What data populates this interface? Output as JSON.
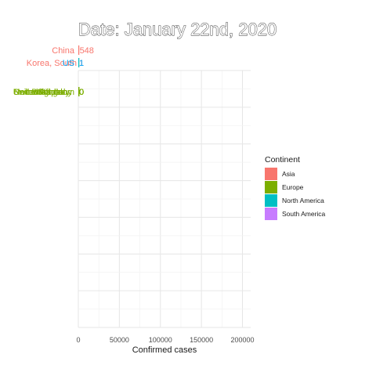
{
  "chart_data": {
    "type": "bar",
    "orientation": "horizontal",
    "title": "Date: January 22nd, 2020",
    "xlabel": "Confirmed cases",
    "ylabel": "",
    "xlim": [
      0,
      210000
    ],
    "x_ticks": [
      0,
      50000,
      100000,
      150000,
      200000
    ],
    "x_tick_labels": [
      "0",
      "50000",
      "100000",
      "150000",
      "200000"
    ],
    "grid": true,
    "legend": {
      "title": "Continent",
      "position": "right",
      "entries": [
        {
          "label": "Asia",
          "color": "#F8766D"
        },
        {
          "label": "Europe",
          "color": "#7CAE00"
        },
        {
          "label": "North America",
          "color": "#00BFC4"
        },
        {
          "label": "South America",
          "color": "#C77CFF"
        }
      ]
    },
    "bars": [
      {
        "country": "China",
        "value": 548,
        "value_label": "548",
        "continent": "Asia",
        "color": "#F8766D",
        "label_color": "#F8766D",
        "rank": 1
      },
      {
        "country": "Korea, South",
        "value": 1,
        "value_label": "1",
        "continent": "Asia",
        "color": "#F8766D",
        "label_color": "#F8766D",
        "rank": 2
      },
      {
        "country": "US",
        "value": 1,
        "value_label": "1",
        "continent": "North America",
        "color": "#00BFC4",
        "label_color": "#00A9FF",
        "rank": 2
      },
      {
        "country": "United Kingdom",
        "value": 0,
        "value_label": "0",
        "continent": "Europe",
        "color": "#7CAE00",
        "label_color": "#7CAE00",
        "rank": 3
      },
      {
        "country": "Germany",
        "value": 0,
        "value_label": "0",
        "continent": "Europe",
        "color": "#7CAE00",
        "label_color": "#7CAE00",
        "rank": 3
      },
      {
        "country": "Italy",
        "value": 0,
        "value_label": "0",
        "continent": "Europe",
        "color": "#7CAE00",
        "label_color": "#7CAE00",
        "rank": 3
      },
      {
        "country": "Spain",
        "value": 0,
        "value_label": "0",
        "continent": "Europe",
        "color": "#7CAE00",
        "label_color": "#7CAE00",
        "rank": 3
      },
      {
        "country": "France",
        "value": 0,
        "value_label": "0",
        "continent": "Europe",
        "color": "#7CAE00",
        "label_color": "#7CAE00",
        "rank": 3
      },
      {
        "country": "Belgium",
        "value": 0,
        "value_label": "0",
        "continent": "Europe",
        "color": "#7CAE00",
        "label_color": "#7CAE00",
        "rank": 3
      },
      {
        "country": "Netherlands",
        "value": 0,
        "value_label": "0",
        "continent": "Europe",
        "color": "#7CAE00",
        "label_color": "#7CAE00",
        "rank": 3
      },
      {
        "country": "Switzerland",
        "value": 0,
        "value_label": "0",
        "continent": "Europe",
        "color": "#7CAE00",
        "label_color": "#7CAE00",
        "rank": 3
      }
    ]
  }
}
